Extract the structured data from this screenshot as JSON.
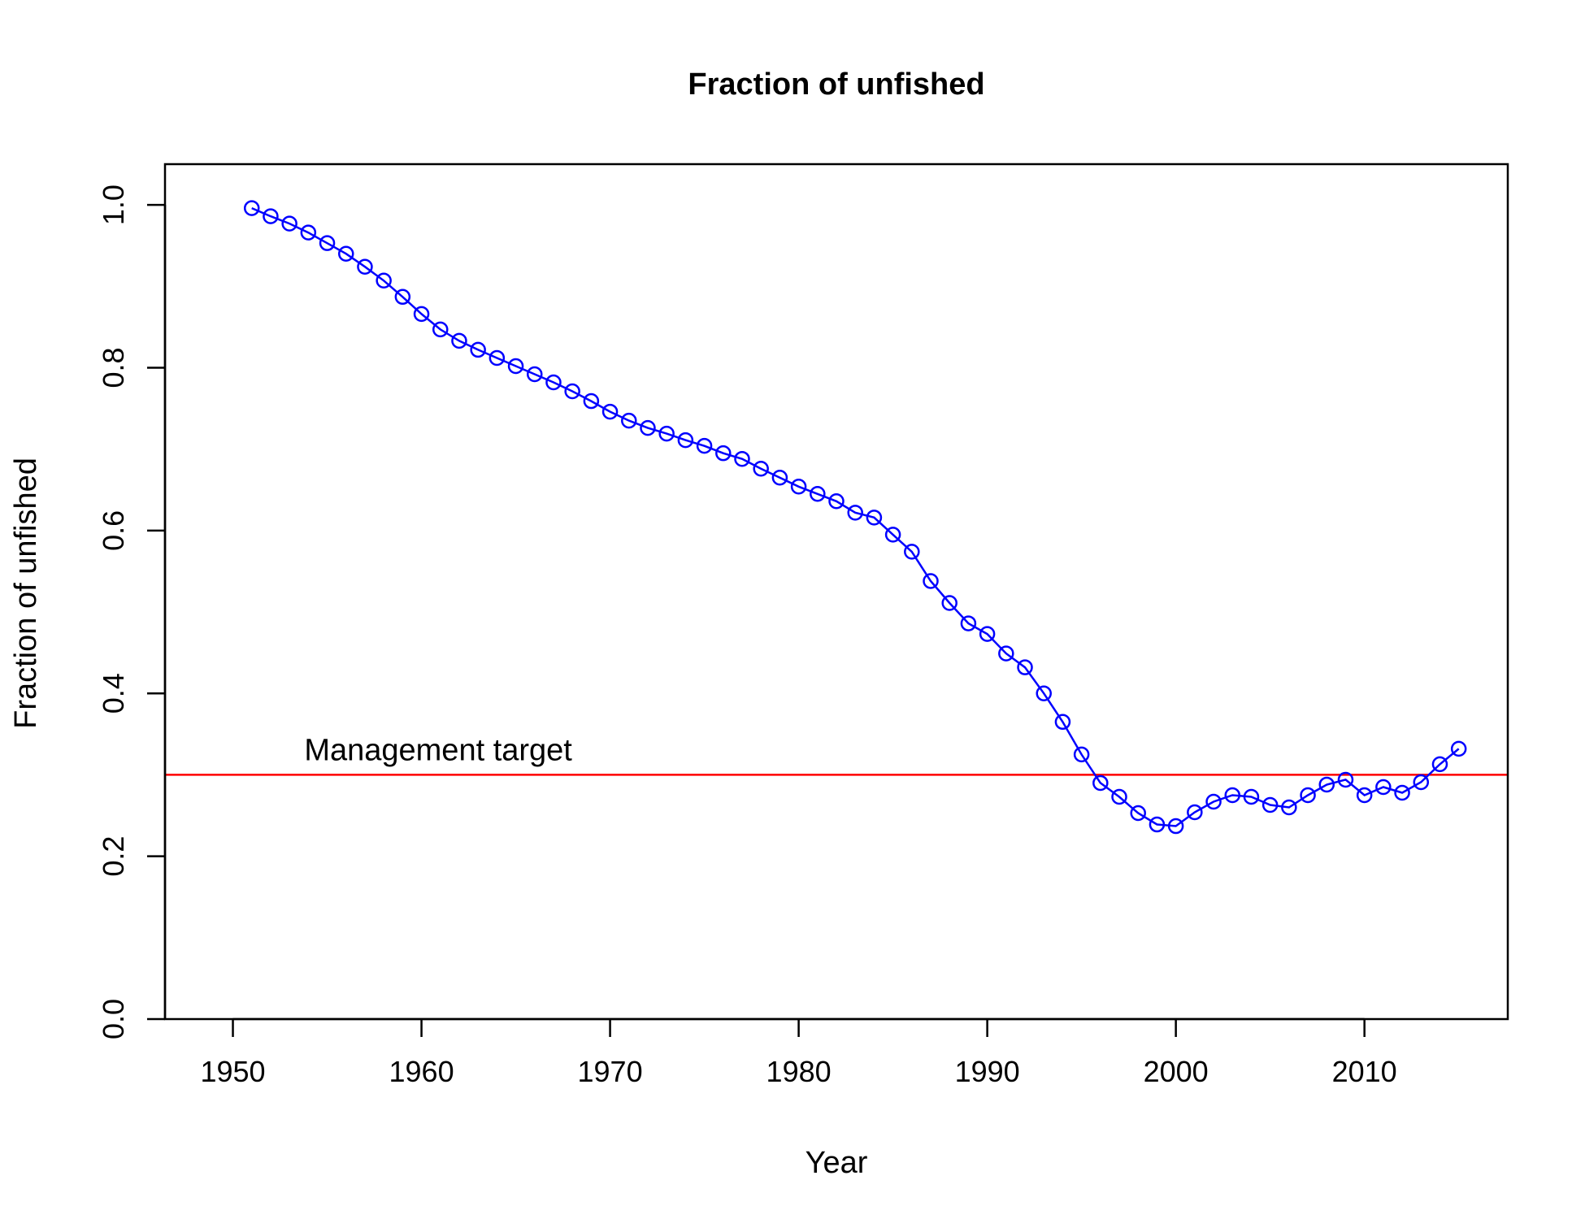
{
  "chart_data": {
    "type": "line",
    "title": "Fraction of unfished",
    "xlabel": "Year",
    "ylabel": "Fraction of unfished",
    "xlim": [
      1946.4,
      2017.6
    ],
    "ylim": [
      0,
      1.05
    ],
    "x_ticks": [
      1950,
      1960,
      1970,
      1980,
      1990,
      2000,
      2010
    ],
    "y_ticks": [
      0.0,
      0.2,
      0.4,
      0.6,
      0.8,
      1.0
    ],
    "x_tick_labels": [
      "1950",
      "1960",
      "1970",
      "1980",
      "1990",
      "2000",
      "2010"
    ],
    "y_tick_labels": [
      "0.0",
      "0.2",
      "0.4",
      "0.6",
      "0.8",
      "1.0"
    ],
    "grid": false,
    "series": [
      {
        "color": "#0000ff",
        "marker": "open-circle",
        "x": [
          1951,
          1952,
          1953,
          1954,
          1955,
          1956,
          1957,
          1958,
          1959,
          1960,
          1961,
          1962,
          1963,
          1964,
          1965,
          1966,
          1967,
          1968,
          1969,
          1970,
          1971,
          1972,
          1973,
          1974,
          1975,
          1976,
          1977,
          1978,
          1979,
          1980,
          1981,
          1982,
          1983,
          1984,
          1985,
          1986,
          1987,
          1988,
          1989,
          1990,
          1991,
          1992,
          1993,
          1994,
          1995,
          1996,
          1997,
          1998,
          1999,
          2000,
          2001,
          2002,
          2003,
          2004,
          2005,
          2006,
          2007,
          2008,
          2009,
          2010,
          2011,
          2012,
          2013,
          2014,
          2015
        ],
        "y": [
          0.996,
          0.986,
          0.977,
          0.966,
          0.953,
          0.94,
          0.924,
          0.907,
          0.887,
          0.866,
          0.847,
          0.833,
          0.822,
          0.812,
          0.802,
          0.792,
          0.782,
          0.771,
          0.759,
          0.746,
          0.735,
          0.726,
          0.719,
          0.711,
          0.704,
          0.695,
          0.688,
          0.676,
          0.665,
          0.654,
          0.645,
          0.636,
          0.622,
          0.616,
          0.595,
          0.574,
          0.538,
          0.511,
          0.486,
          0.473,
          0.449,
          0.432,
          0.4,
          0.365,
          0.325,
          0.29,
          0.273,
          0.253,
          0.239,
          0.237,
          0.254,
          0.267,
          0.275,
          0.273,
          0.263,
          0.26,
          0.275,
          0.288,
          0.294,
          0.275,
          0.285,
          0.278,
          0.291,
          0.313,
          0.332
        ]
      }
    ],
    "reference_line": {
      "y": 0.3,
      "color": "#ff0000",
      "label": "Management target",
      "label_x": 1954
    }
  }
}
